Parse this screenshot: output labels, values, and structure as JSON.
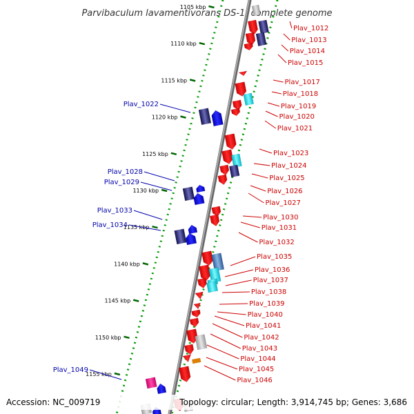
{
  "title": "Parvibaculum lavamentivorans DS-1, complete genome",
  "footer": {
    "accession": "Accession: NC_009719",
    "topology": "Topology: circular; Length: 3,914,745 bp; Genes: 3,686"
  },
  "colors": {
    "forward_gene": "#ff0000",
    "reverse_gene": "#0000ff",
    "label_right": "#cc0000",
    "label_left": "#0000aa",
    "backbone": "#888888",
    "dotted_track": "#009900",
    "tick": "#006600"
  },
  "scale_ticks": [
    {
      "label": "1105 kbp",
      "kbp": 1105
    },
    {
      "label": "1110 kbp",
      "kbp": 1110
    },
    {
      "label": "1115 kbp",
      "kbp": 1115
    },
    {
      "label": "1120 kbp",
      "kbp": 1120
    },
    {
      "label": "1125 kbp",
      "kbp": 1125
    },
    {
      "label": "1130 kbp",
      "kbp": 1130
    },
    {
      "label": "1135 kbp",
      "kbp": 1135
    },
    {
      "label": "1140 kbp",
      "kbp": 1140
    },
    {
      "label": "1145 kbp",
      "kbp": 1145
    },
    {
      "label": "1150 kbp",
      "kbp": 1150
    },
    {
      "label": "1155 kbp",
      "kbp": 1155
    }
  ],
  "labels_right": [
    "Plav_1012",
    "Plav_1013",
    "Plav_1014",
    "Plav_1015",
    "Plav_1017",
    "Plav_1018",
    "Plav_1019",
    "Plav_1020",
    "Plav_1021",
    "Plav_1023",
    "Plav_1024",
    "Plav_1025",
    "Plav_1026",
    "Plav_1027",
    "Plav_1030",
    "Plav_1031",
    "Plav_1032",
    "Plav_1035",
    "Plav_1036",
    "Plav_1037",
    "Plav_1038",
    "Plav_1039",
    "Plav_1040",
    "Plav_1041",
    "Plav_1042",
    "Plav_1043",
    "Plav_1044",
    "Plav_1045",
    "Plav_1046"
  ],
  "labels_left": [
    "Plav_1022",
    "Plav_1028",
    "Plav_1029",
    "Plav_1033",
    "Plav_1034",
    "Plav_1049"
  ]
}
